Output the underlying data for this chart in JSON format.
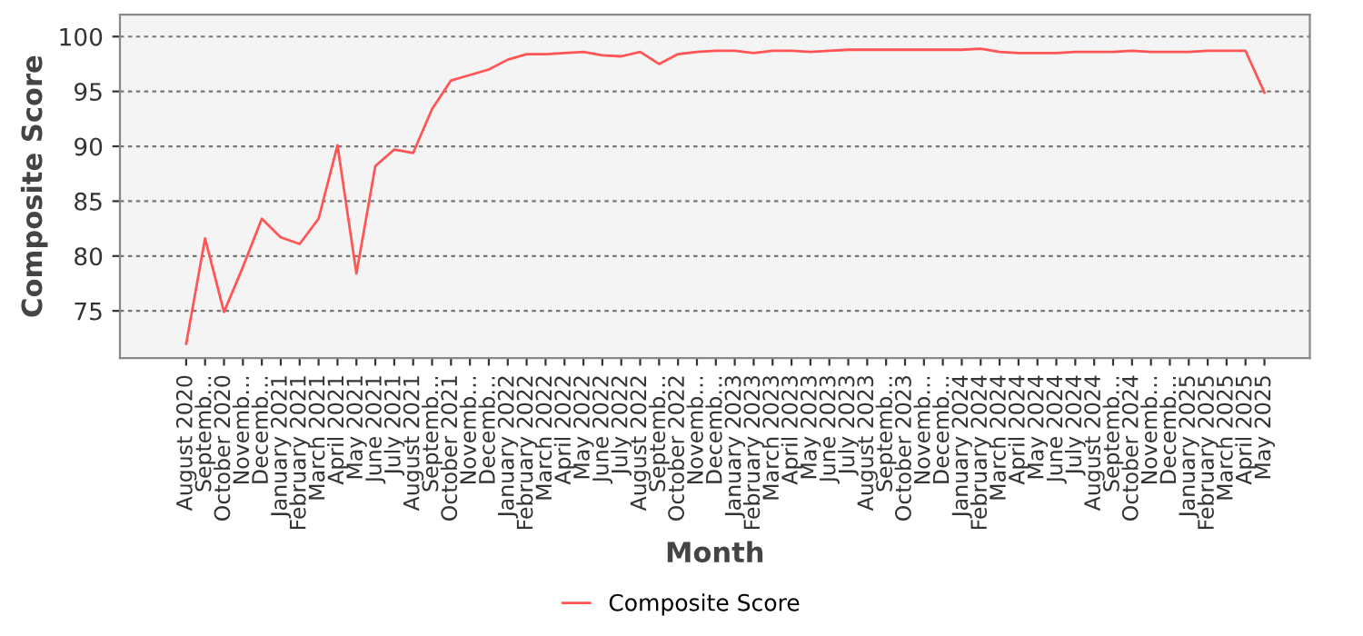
{
  "chart_data": {
    "type": "line",
    "xlabel": "Month",
    "ylabel": "Composite Score",
    "categories": [
      "August 2020",
      "Septemb…",
      "October 2020",
      "Novemb…",
      "Decemb…",
      "January 2021",
      "February 2021",
      "March 2021",
      "April 2021",
      "May 2021",
      "June 2021",
      "July 2021",
      "August 2021",
      "Septemb…",
      "October 2021",
      "Novemb…",
      "Decemb…",
      "January 2022",
      "February 2022",
      "March 2022",
      "April 2022",
      "May 2022",
      "June 2022",
      "July 2022",
      "August 2022",
      "Septemb…",
      "October 2022",
      "Novemb…",
      "Decemb…",
      "January 2023",
      "February 2023",
      "March 2023",
      "April 2023",
      "May 2023",
      "June 2023",
      "July 2023",
      "August 2023",
      "Septemb…",
      "October 2023",
      "Novemb…",
      "Decemb…",
      "January 2024",
      "February 2024",
      "March 2024",
      "April 2024",
      "May 2024",
      "June 2024",
      "July 2024",
      "August 2024",
      "Septemb…",
      "October 2024",
      "Novemb…",
      "Decemb…",
      "January 2025",
      "February 2025",
      "March 2025",
      "April 2025",
      "May 2025"
    ],
    "series": [
      {
        "name": "Composite Score",
        "color": "#ff5555",
        "values": [
          72.0,
          81.6,
          74.9,
          79.0,
          83.4,
          81.7,
          81.1,
          83.4,
          90.1,
          78.4,
          88.2,
          89.7,
          89.4,
          93.4,
          96.0,
          96.5,
          97.0,
          97.9,
          98.4,
          98.4,
          98.5,
          98.6,
          98.3,
          98.2,
          98.6,
          97.5,
          98.4,
          98.6,
          98.7,
          98.7,
          98.5,
          98.7,
          98.7,
          98.6,
          98.7,
          98.8,
          98.8,
          98.8,
          98.8,
          98.8,
          98.8,
          98.8,
          98.9,
          98.6,
          98.5,
          98.5,
          98.5,
          98.6,
          98.6,
          98.6,
          98.7,
          98.6,
          98.6,
          98.6,
          98.7,
          98.7,
          98.7,
          94.9
        ]
      }
    ],
    "ylim": [
      70.7,
      102
    ],
    "yticks": [
      75,
      80,
      85,
      90,
      95,
      100
    ],
    "grid": "y",
    "legend": "bottom",
    "marker": "none",
    "line_style": "solid"
  }
}
